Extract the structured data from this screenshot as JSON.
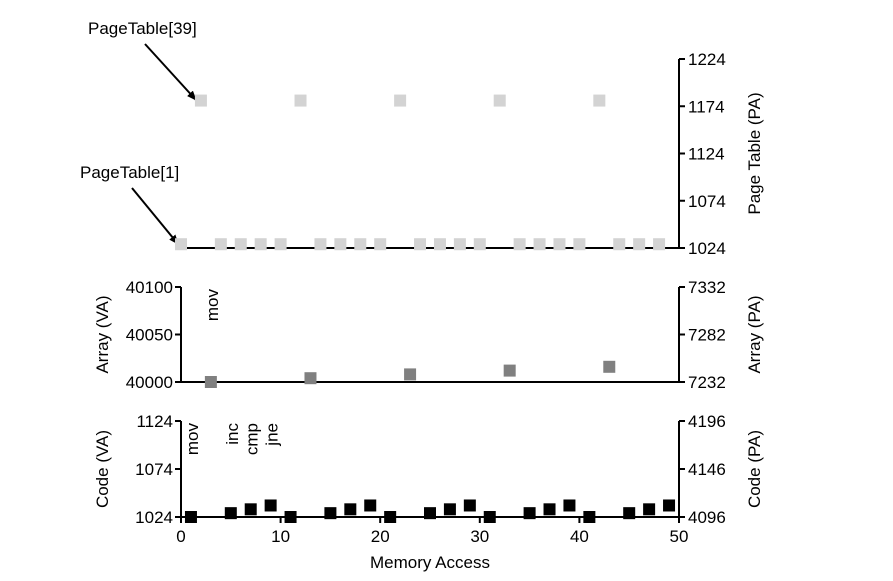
{
  "chart_data": {
    "type": "scatter",
    "xlabel": "Memory Access",
    "xlim": [
      0,
      50
    ],
    "xticks": [
      0,
      10,
      20,
      30,
      40,
      50
    ],
    "panels": [
      {
        "name": "page-table",
        "ylabel_left": "",
        "ylabel_right": "Page Table (PA)",
        "ylim": [
          1024,
          1224
        ],
        "yticks_right": [
          1024,
          1074,
          1124,
          1174,
          1224
        ],
        "marker_color": "#d3d3d3",
        "annotations": [
          {
            "text": "PageTable[39]",
            "target": [
              2,
              1180
            ]
          },
          {
            "text": "PageTable[1]",
            "target": [
              0,
              1028
            ]
          }
        ],
        "points": [
          [
            0,
            1028
          ],
          [
            2,
            1180
          ],
          [
            4,
            1028
          ],
          [
            6,
            1028
          ],
          [
            8,
            1028
          ],
          [
            10,
            1028
          ],
          [
            12,
            1180
          ],
          [
            14,
            1028
          ],
          [
            16,
            1028
          ],
          [
            18,
            1028
          ],
          [
            20,
            1028
          ],
          [
            22,
            1180
          ],
          [
            24,
            1028
          ],
          [
            26,
            1028
          ],
          [
            28,
            1028
          ],
          [
            30,
            1028
          ],
          [
            32,
            1180
          ],
          [
            34,
            1028
          ],
          [
            36,
            1028
          ],
          [
            38,
            1028
          ],
          [
            40,
            1028
          ],
          [
            42,
            1180
          ],
          [
            44,
            1028
          ],
          [
            46,
            1028
          ],
          [
            48,
            1028
          ]
        ]
      },
      {
        "name": "array",
        "ylabel_left": "Array (VA)",
        "ylabel_right": "Array (PA)",
        "ylim": [
          40000,
          40100
        ],
        "yticks_left": [
          40000,
          40050,
          40100
        ],
        "ylim_right": [
          7232,
          7332
        ],
        "yticks_right": [
          7232,
          7282,
          7332
        ],
        "marker_color": "#808080",
        "instruction_labels": [
          {
            "text": "mov",
            "x": 3
          }
        ],
        "points": [
          [
            3,
            40000
          ],
          [
            13,
            40004
          ],
          [
            23,
            40008
          ],
          [
            33,
            40012
          ],
          [
            43,
            40016
          ]
        ]
      },
      {
        "name": "code",
        "ylabel_left": "Code (VA)",
        "ylabel_right": "Code (PA)",
        "ylim": [
          1024,
          1124
        ],
        "yticks_left": [
          1024,
          1074,
          1124
        ],
        "ylim_right": [
          4096,
          4196
        ],
        "yticks_right": [
          4096,
          4146,
          4196
        ],
        "marker_color": "#000000",
        "instruction_labels": [
          {
            "text": "mov",
            "x": 1
          },
          {
            "text": "inc",
            "x": 5
          },
          {
            "text": "cmp",
            "x": 7
          },
          {
            "text": "jne",
            "x": 9
          }
        ],
        "points": [
          [
            1,
            1024
          ],
          [
            5,
            1028
          ],
          [
            7,
            1032
          ],
          [
            9,
            1036
          ],
          [
            11,
            1024
          ],
          [
            15,
            1028
          ],
          [
            17,
            1032
          ],
          [
            19,
            1036
          ],
          [
            21,
            1024
          ],
          [
            25,
            1028
          ],
          [
            27,
            1032
          ],
          [
            29,
            1036
          ],
          [
            31,
            1024
          ],
          [
            35,
            1028
          ],
          [
            37,
            1032
          ],
          [
            39,
            1036
          ],
          [
            41,
            1024
          ],
          [
            45,
            1028
          ],
          [
            47,
            1032
          ],
          [
            49,
            1036
          ]
        ]
      }
    ]
  }
}
